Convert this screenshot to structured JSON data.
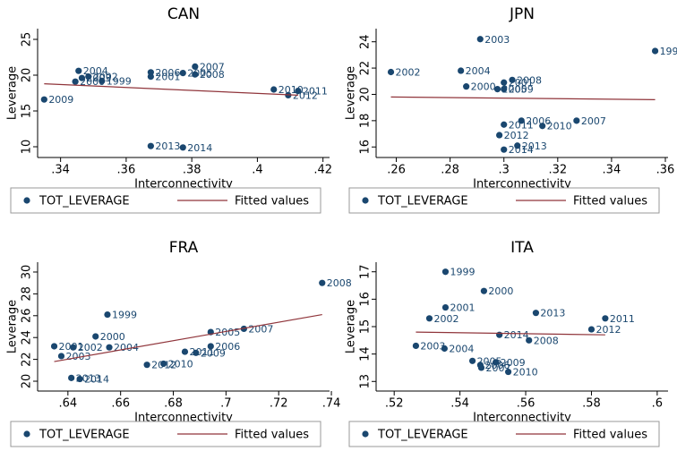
{
  "chart_data": [
    {
      "type": "scatter",
      "title": "CAN",
      "xlabel": "Interconnectivity",
      "ylabel": "Leverage",
      "xlim": [
        0.333,
        0.422
      ],
      "ylim": [
        8.5,
        26.5
      ],
      "xticks": [
        {
          "value": 0.34,
          "label": ".34"
        },
        {
          "value": 0.36,
          "label": ".36"
        },
        {
          "value": 0.38,
          "label": ".38"
        },
        {
          "value": 0.4,
          "label": ".4"
        },
        {
          "value": 0.42,
          "label": ".42"
        }
      ],
      "yticks": [
        10,
        15,
        20,
        25
      ],
      "series": [
        {
          "name": "TOT_LEVERAGE",
          "color": "#1a476f",
          "kind": "points",
          "labels": [
            "1999",
            "2000",
            "2001",
            "2002",
            "2003",
            "2004",
            "2005",
            "2006",
            "2007",
            "2008",
            "2009",
            "2010",
            "2011",
            "2012",
            "2013",
            "2014"
          ],
          "x": [
            0.3526,
            0.3445,
            0.3675,
            0.3485,
            0.3465,
            0.3455,
            0.3773,
            0.3675,
            0.381,
            0.381,
            0.335,
            0.405,
            0.4124,
            0.4094,
            0.3675,
            0.3773
          ],
          "values": [
            19.2,
            19.1,
            19.8,
            19.8,
            19.6,
            20.6,
            20.3,
            20.4,
            21.2,
            20.1,
            16.6,
            18.0,
            17.8,
            17.2,
            10.1,
            9.9
          ]
        },
        {
          "name": "Fitted values",
          "color": "#90353b",
          "kind": "line",
          "x": [
            0.335,
            0.4124
          ],
          "values": [
            18.8,
            17.2
          ]
        }
      ]
    },
    {
      "type": "scatter",
      "title": "JPN",
      "xlabel": "Interconnectivity",
      "ylabel": "Leverage",
      "xlim": [
        0.2525,
        0.361
      ],
      "ylim": [
        15.2,
        25
      ],
      "xticks": [
        {
          "value": 0.26,
          "label": ".26"
        },
        {
          "value": 0.28,
          "label": ".28"
        },
        {
          "value": 0.3,
          "label": ".3"
        },
        {
          "value": 0.32,
          "label": ".32"
        },
        {
          "value": 0.34,
          "label": ".34"
        },
        {
          "value": 0.36,
          "label": ".36"
        }
      ],
      "yticks": [
        16,
        18,
        20,
        22,
        24
      ],
      "series": [
        {
          "name": "TOT_LEVERAGE",
          "color": "#1a476f",
          "kind": "points",
          "labels": [
            "1999",
            "2000",
            "2001",
            "2002",
            "2003",
            "2004",
            "2005",
            "2006",
            "2007",
            "2008",
            "2009",
            "2010",
            "2011",
            "2012",
            "2013",
            "2014"
          ],
          "x": [
            0.3562,
            0.286,
            0.3,
            0.258,
            0.2912,
            0.284,
            0.2976,
            0.3065,
            0.327,
            0.3031,
            0.3,
            0.3143,
            0.3,
            0.2983,
            0.305,
            0.3
          ],
          "values": [
            23.3,
            20.6,
            20.9,
            21.7,
            24.2,
            21.8,
            20.4,
            18.0,
            18.0,
            21.1,
            20.4,
            17.6,
            17.7,
            16.9,
            16.1,
            15.8
          ]
        },
        {
          "name": "Fitted values",
          "color": "#90353b",
          "kind": "line",
          "x": [
            0.258,
            0.3562
          ],
          "values": [
            19.8,
            19.6
          ]
        }
      ]
    },
    {
      "type": "scatter",
      "title": "FRA",
      "xlabel": "Interconnectivity",
      "ylabel": "Leverage",
      "xlim": [
        0.6285,
        0.7393
      ],
      "ylim": [
        19.1,
        30.9
      ],
      "xticks": [
        {
          "value": 0.64,
          "label": ".64"
        },
        {
          "value": 0.66,
          "label": ".66"
        },
        {
          "value": 0.68,
          "label": ".68"
        },
        {
          "value": 0.7,
          "label": ".7"
        },
        {
          "value": 0.72,
          "label": ".72"
        },
        {
          "value": 0.74,
          "label": ".74"
        }
      ],
      "yticks": [
        20,
        22,
        24,
        26,
        28,
        30
      ],
      "series": [
        {
          "name": "TOT_LEVERAGE",
          "color": "#1a476f",
          "kind": "points",
          "labels": [
            "1999",
            "2000",
            "2001",
            "2002",
            "2003",
            "2004",
            "2005",
            "2006",
            "2007",
            "2008",
            "2009",
            "2010",
            "2011",
            "2012",
            "2013",
            "2014"
          ],
          "x": [
            0.655,
            0.6505,
            0.6348,
            0.642,
            0.6375,
            0.6557,
            0.6942,
            0.6942,
            0.7068,
            0.7365,
            0.6886,
            0.6763,
            0.6844,
            0.67,
            0.6413,
            0.6445
          ],
          "values": [
            26.1,
            24.1,
            23.2,
            23.1,
            22.3,
            23.1,
            24.5,
            23.2,
            24.8,
            29.0,
            22.6,
            21.6,
            22.7,
            21.5,
            20.3,
            20.2
          ]
        },
        {
          "name": "Fitted values",
          "color": "#90353b",
          "kind": "line",
          "x": [
            0.6348,
            0.7365
          ],
          "values": [
            21.8,
            26.1
          ]
        }
      ]
    },
    {
      "type": "scatter",
      "title": "ITA",
      "xlabel": "Interconnectivity",
      "ylabel": "Leverage",
      "xlim": [
        0.5145,
        0.6033
      ],
      "ylim": [
        12.65,
        17.35
      ],
      "xticks": [
        {
          "value": 0.52,
          "label": ".52"
        },
        {
          "value": 0.54,
          "label": ".54"
        },
        {
          "value": 0.56,
          "label": ".56"
        },
        {
          "value": 0.58,
          "label": ".58"
        },
        {
          "value": 0.6,
          "label": ".6"
        }
      ],
      "yticks": [
        13,
        14,
        15,
        16,
        17
      ],
      "series": [
        {
          "name": "TOT_LEVERAGE",
          "color": "#1a476f",
          "kind": "points",
          "labels": [
            "1999",
            "2000",
            "2001",
            "2002",
            "2003",
            "2004",
            "2005",
            "2006",
            "2007",
            "2008",
            "2009",
            "2010",
            "2011",
            "2012",
            "2013",
            "2014"
          ],
          "x": [
            0.5356,
            0.5473,
            0.5356,
            0.5307,
            0.5266,
            0.5353,
            0.5438,
            0.5462,
            0.5465,
            0.561,
            0.5509,
            0.5547,
            0.5842,
            0.58,
            0.5631,
            0.552
          ],
          "values": [
            17.0,
            16.3,
            15.7,
            15.3,
            14.3,
            14.2,
            13.75,
            13.6,
            13.5,
            14.5,
            13.7,
            13.35,
            15.3,
            14.9,
            15.5,
            14.7
          ]
        },
        {
          "name": "Fitted values",
          "color": "#90353b",
          "kind": "line",
          "x": [
            0.5266,
            0.5842
          ],
          "values": [
            14.8,
            14.7
          ]
        }
      ]
    }
  ]
}
